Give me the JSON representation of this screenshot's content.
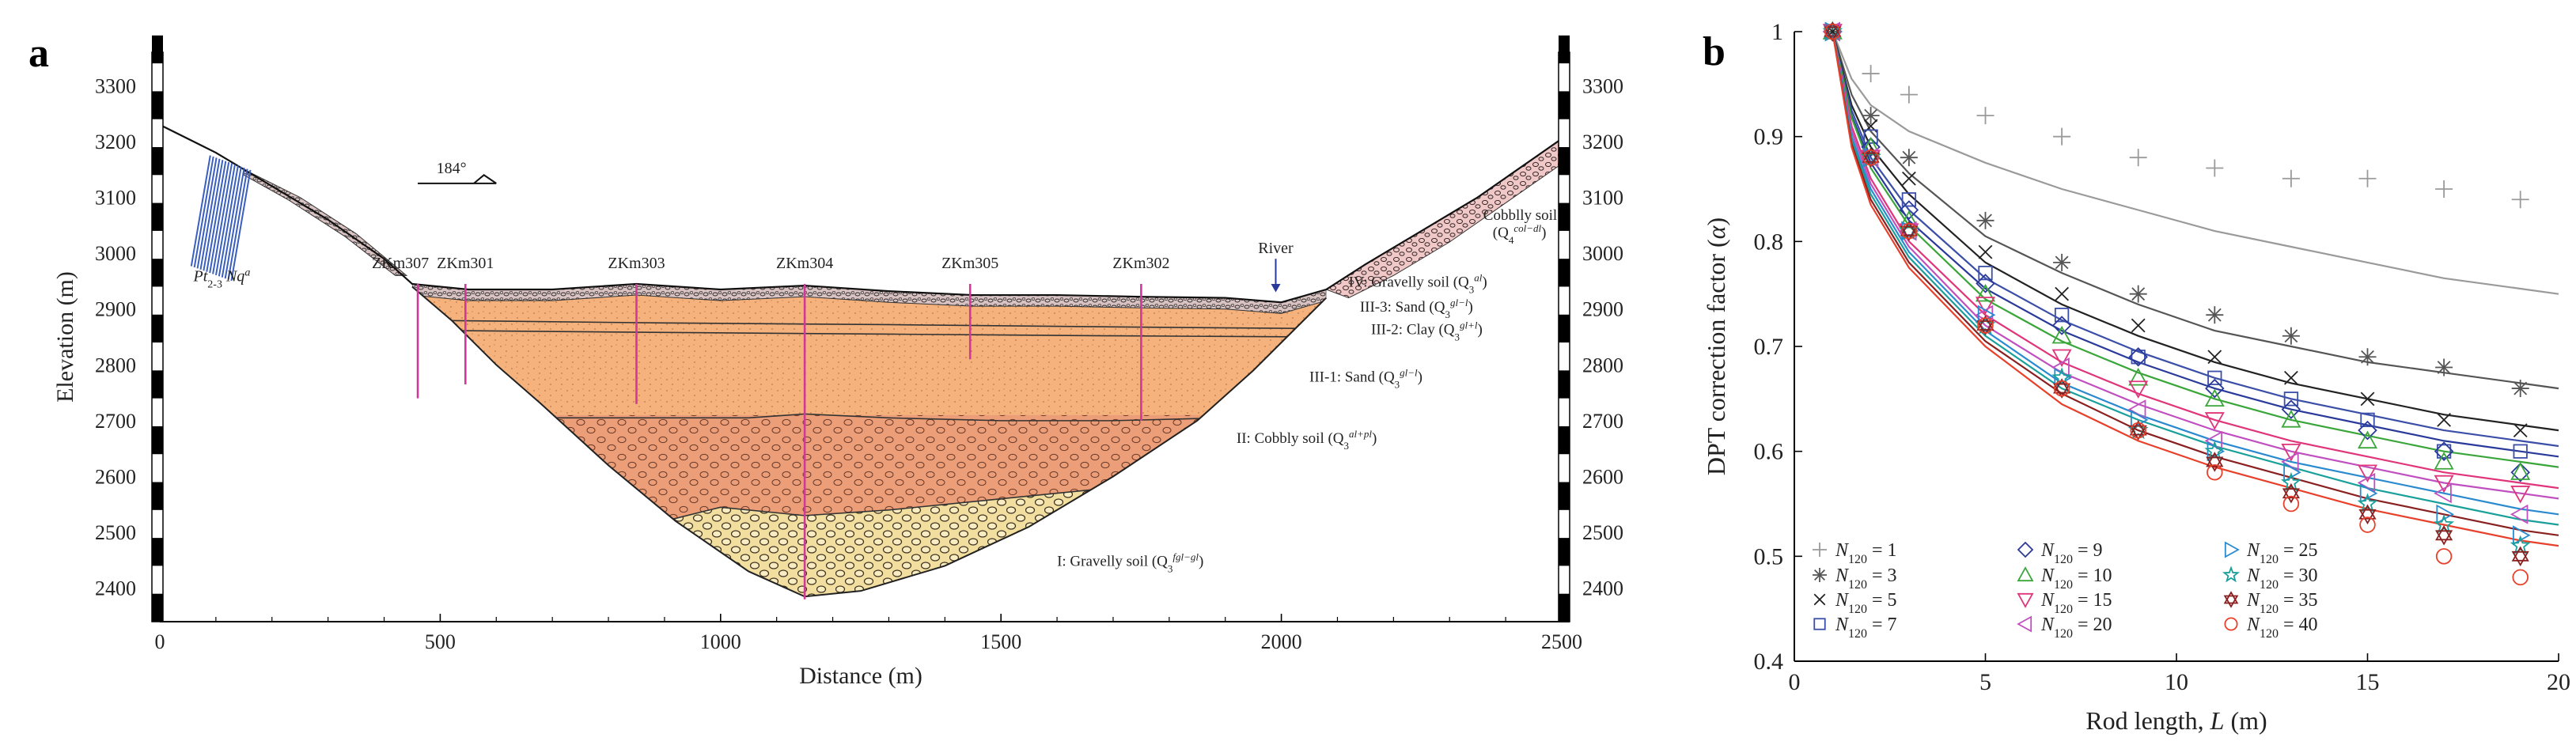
{
  "panel_a_label": "a",
  "panel_b_label": "b",
  "panel_a": {
    "xlabel": "Distance (m)",
    "ylabel": "Elevation (m)",
    "xticks": [
      0,
      500,
      1000,
      1500,
      2000,
      2500
    ],
    "yticks": [
      2400,
      2500,
      2600,
      2700,
      2800,
      2900,
      3000,
      3100,
      3200,
      3300
    ],
    "direction_label": "184°",
    "boreholes": [
      {
        "name": "ZKm307",
        "x": 460,
        "bottom": 2740
      },
      {
        "name": "ZKm301",
        "x": 545,
        "bottom": 2765
      },
      {
        "name": "ZKm303",
        "x": 850,
        "bottom": 2730
      },
      {
        "name": "ZKm304",
        "x": 1150,
        "bottom": 2380
      },
      {
        "name": "ZKm305",
        "x": 1445,
        "bottom": 2810
      },
      {
        "name": "ZKm302",
        "x": 1750,
        "bottom": 2700
      }
    ],
    "river_label": "River",
    "bedrock_label": "Pt",
    "bedrock_sub": "2-3",
    "bedrock_mid": " Nq",
    "bedrock_sup": "a",
    "layer_labels": [
      {
        "main": "Cobblly soil",
        "line2": "(Q",
        "sub": "4",
        "sup": "col−dl",
        "close": ")"
      },
      {
        "main": "IV: Gravelly soil (Q",
        "sub": "3",
        "sup": "al",
        "close": ")"
      },
      {
        "main": "III-3: Sand (Q",
        "sub": "3",
        "sup": "gl−l",
        "close": ")"
      },
      {
        "main": "III-2: Clay (Q",
        "sub": "3",
        "sup": "gl+l",
        "close": ")"
      },
      {
        "main": "III-1: Sand (Q",
        "sub": "3",
        "sup": "gl−l",
        "close": ")"
      },
      {
        "main": "II: Cobbly soil (Q",
        "sub": "3",
        "sup": "al+pl",
        "close": ")"
      },
      {
        "main": "I: Gravelly soil (Q",
        "sub": "3",
        "sup": "fgl−gl",
        "close": ")"
      }
    ],
    "colors": {
      "sand": "#f5b27c",
      "cobbly": "#e9a37d",
      "gravel": "#f2de9e",
      "borehole": "#d0389a",
      "bedrock": "#3a5fbf"
    }
  },
  "chart_data": {
    "type": "scatter",
    "xlabel_pre": "Rod length, ",
    "xlabel_var": "L",
    "xlabel_post": " (m)",
    "ylabel_pre": "DPT correction factor (",
    "ylabel_var": "α",
    "ylabel_post": ")",
    "xlim": [
      0,
      20
    ],
    "ylim": [
      0.4,
      1.0
    ],
    "xticks": [
      0,
      5,
      10,
      15,
      20
    ],
    "yticks": [
      0.4,
      0.5,
      0.6,
      0.7,
      0.8,
      0.9,
      1
    ],
    "legend_placement": "bottom-left",
    "x": [
      1,
      2,
      3,
      5,
      7,
      9,
      11,
      13,
      15,
      17,
      19
    ],
    "series": [
      {
        "name": "N120 = 1",
        "legend_n": "N",
        "legend_sub": "120",
        "legend_val": " = 1",
        "marker": "plus",
        "color": "#9a9a9a",
        "values": [
          1.0,
          0.96,
          0.94,
          0.92,
          0.9,
          0.88,
          0.87,
          0.86,
          0.86,
          0.85,
          0.84
        ],
        "curve": [
          [
            1,
            1.0
          ],
          [
            1.5,
            0.955
          ],
          [
            2,
            0.93
          ],
          [
            3,
            0.905
          ],
          [
            5,
            0.875
          ],
          [
            7,
            0.85
          ],
          [
            9,
            0.83
          ],
          [
            11,
            0.81
          ],
          [
            13,
            0.795
          ],
          [
            15,
            0.78
          ],
          [
            17,
            0.765
          ],
          [
            19,
            0.755
          ],
          [
            20,
            0.75
          ]
        ]
      },
      {
        "name": "N120 = 3",
        "legend_n": "N",
        "legend_sub": "120",
        "legend_val": " = 3",
        "marker": "asterisk",
        "color": "#555555",
        "values": [
          1.0,
          0.92,
          0.88,
          0.82,
          0.78,
          0.75,
          0.73,
          0.71,
          0.69,
          0.68,
          0.66
        ],
        "curve": [
          [
            1,
            1.0
          ],
          [
            1.5,
            0.94
          ],
          [
            2,
            0.905
          ],
          [
            3,
            0.865
          ],
          [
            5,
            0.805
          ],
          [
            7,
            0.77
          ],
          [
            9,
            0.74
          ],
          [
            11,
            0.715
          ],
          [
            13,
            0.7
          ],
          [
            15,
            0.685
          ],
          [
            17,
            0.675
          ],
          [
            19,
            0.665
          ],
          [
            20,
            0.66
          ]
        ]
      },
      {
        "name": "N120 = 5",
        "legend_n": "N",
        "legend_sub": "120",
        "legend_val": " = 5",
        "marker": "x",
        "color": "#222222",
        "values": [
          1.0,
          0.91,
          0.86,
          0.79,
          0.75,
          0.72,
          0.69,
          0.67,
          0.65,
          0.63,
          0.62
        ],
        "curve": [
          [
            1,
            1.0
          ],
          [
            1.5,
            0.93
          ],
          [
            2,
            0.89
          ],
          [
            3,
            0.845
          ],
          [
            5,
            0.78
          ],
          [
            7,
            0.74
          ],
          [
            9,
            0.71
          ],
          [
            11,
            0.685
          ],
          [
            13,
            0.665
          ],
          [
            15,
            0.65
          ],
          [
            17,
            0.635
          ],
          [
            19,
            0.625
          ],
          [
            20,
            0.62
          ]
        ]
      },
      {
        "name": "N120 = 7",
        "legend_n": "N",
        "legend_sub": "120",
        "legend_val": " = 7",
        "marker": "square",
        "color": "#3b4fa8",
        "values": [
          1.0,
          0.9,
          0.84,
          0.77,
          0.73,
          0.69,
          0.67,
          0.65,
          0.63,
          0.6,
          0.6
        ],
        "curve": [
          [
            1,
            1.0
          ],
          [
            1.5,
            0.925
          ],
          [
            2,
            0.88
          ],
          [
            3,
            0.83
          ],
          [
            5,
            0.765
          ],
          [
            7,
            0.725
          ],
          [
            9,
            0.695
          ],
          [
            11,
            0.67
          ],
          [
            13,
            0.65
          ],
          [
            15,
            0.635
          ],
          [
            17,
            0.62
          ],
          [
            19,
            0.61
          ],
          [
            20,
            0.605
          ]
        ]
      },
      {
        "name": "N120 = 9",
        "legend_n": "N",
        "legend_sub": "120",
        "legend_val": " = 9",
        "marker": "diamond",
        "color": "#2a3a9a",
        "values": [
          1.0,
          0.89,
          0.83,
          0.76,
          0.72,
          0.69,
          0.66,
          0.64,
          0.62,
          0.6,
          0.58
        ],
        "curve": [
          [
            1,
            1.0
          ],
          [
            1.5,
            0.92
          ],
          [
            2,
            0.875
          ],
          [
            3,
            0.82
          ],
          [
            5,
            0.755
          ],
          [
            7,
            0.715
          ],
          [
            9,
            0.685
          ],
          [
            11,
            0.66
          ],
          [
            13,
            0.64
          ],
          [
            15,
            0.625
          ],
          [
            17,
            0.61
          ],
          [
            19,
            0.6
          ],
          [
            20,
            0.595
          ]
        ]
      },
      {
        "name": "N120 = 10",
        "legend_n": "N",
        "legend_sub": "120",
        "legend_val": " = 10",
        "marker": "triangle-up",
        "color": "#3aa63a",
        "values": [
          1.0,
          0.89,
          0.82,
          0.75,
          0.71,
          0.67,
          0.65,
          0.63,
          0.61,
          0.59,
          0.58
        ],
        "curve": [
          [
            1,
            1.0
          ],
          [
            1.5,
            0.918
          ],
          [
            2,
            0.87
          ],
          [
            3,
            0.815
          ],
          [
            5,
            0.745
          ],
          [
            7,
            0.705
          ],
          [
            9,
            0.675
          ],
          [
            11,
            0.65
          ],
          [
            13,
            0.63
          ],
          [
            15,
            0.615
          ],
          [
            17,
            0.6
          ],
          [
            19,
            0.59
          ],
          [
            20,
            0.585
          ]
        ]
      },
      {
        "name": "N120 = 15",
        "legend_n": "N",
        "legend_sub": "120",
        "legend_val": " = 15",
        "marker": "triangle-down",
        "color": "#e0357a",
        "values": [
          1.0,
          0.88,
          0.81,
          0.74,
          0.69,
          0.66,
          0.63,
          0.6,
          0.58,
          0.57,
          0.56
        ],
        "curve": [
          [
            1,
            1.0
          ],
          [
            1.5,
            0.91
          ],
          [
            2,
            0.86
          ],
          [
            3,
            0.8
          ],
          [
            5,
            0.73
          ],
          [
            7,
            0.685
          ],
          [
            9,
            0.655
          ],
          [
            11,
            0.63
          ],
          [
            13,
            0.61
          ],
          [
            15,
            0.595
          ],
          [
            17,
            0.58
          ],
          [
            19,
            0.57
          ],
          [
            20,
            0.565
          ]
        ]
      },
      {
        "name": "N120 = 20",
        "legend_n": "N",
        "legend_sub": "120",
        "legend_val": " = 20",
        "marker": "triangle-left",
        "color": "#c050c0",
        "values": [
          1.0,
          0.88,
          0.81,
          0.73,
          0.68,
          0.64,
          0.61,
          0.59,
          0.57,
          0.56,
          0.54
        ],
        "curve": [
          [
            1,
            1.0
          ],
          [
            1.5,
            0.905
          ],
          [
            2,
            0.855
          ],
          [
            3,
            0.795
          ],
          [
            5,
            0.72
          ],
          [
            7,
            0.675
          ],
          [
            9,
            0.645
          ],
          [
            11,
            0.62
          ],
          [
            13,
            0.6
          ],
          [
            15,
            0.585
          ],
          [
            17,
            0.57
          ],
          [
            19,
            0.56
          ],
          [
            20,
            0.555
          ]
        ]
      },
      {
        "name": "N120 = 25",
        "legend_n": "N",
        "legend_sub": "120",
        "legend_val": " = 25",
        "marker": "triangle-right",
        "color": "#2a8ad0",
        "values": [
          1.0,
          0.88,
          0.81,
          0.73,
          0.67,
          0.63,
          0.6,
          0.58,
          0.56,
          0.54,
          0.52
        ],
        "curve": [
          [
            1,
            1.0
          ],
          [
            1.5,
            0.9
          ],
          [
            2,
            0.85
          ],
          [
            3,
            0.79
          ],
          [
            5,
            0.715
          ],
          [
            7,
            0.665
          ],
          [
            9,
            0.635
          ],
          [
            11,
            0.61
          ],
          [
            13,
            0.59
          ],
          [
            15,
            0.575
          ],
          [
            17,
            0.56
          ],
          [
            19,
            0.545
          ],
          [
            20,
            0.54
          ]
        ]
      },
      {
        "name": "N120 = 30",
        "legend_n": "N",
        "legend_sub": "120",
        "legend_val": " = 30",
        "marker": "star",
        "color": "#1aa09a",
        "values": [
          1.0,
          0.88,
          0.81,
          0.72,
          0.67,
          0.62,
          0.6,
          0.57,
          0.55,
          0.53,
          0.51
        ],
        "curve": [
          [
            1,
            1.0
          ],
          [
            1.5,
            0.897
          ],
          [
            2,
            0.845
          ],
          [
            3,
            0.785
          ],
          [
            5,
            0.71
          ],
          [
            7,
            0.66
          ],
          [
            9,
            0.63
          ],
          [
            11,
            0.605
          ],
          [
            13,
            0.585
          ],
          [
            15,
            0.565
          ],
          [
            17,
            0.55
          ],
          [
            19,
            0.535
          ],
          [
            20,
            0.53
          ]
        ]
      },
      {
        "name": "N120 = 35",
        "legend_n": "N",
        "legend_sub": "120",
        "legend_val": " = 35",
        "marker": "hexagram",
        "color": "#8a2020",
        "values": [
          1.0,
          0.88,
          0.81,
          0.72,
          0.66,
          0.62,
          0.59,
          0.56,
          0.54,
          0.52,
          0.5
        ],
        "curve": [
          [
            1,
            1.0
          ],
          [
            1.5,
            0.893
          ],
          [
            2,
            0.84
          ],
          [
            3,
            0.78
          ],
          [
            5,
            0.705
          ],
          [
            7,
            0.655
          ],
          [
            9,
            0.62
          ],
          [
            11,
            0.595
          ],
          [
            13,
            0.575
          ],
          [
            15,
            0.555
          ],
          [
            17,
            0.54
          ],
          [
            19,
            0.525
          ],
          [
            20,
            0.52
          ]
        ]
      },
      {
        "name": "N120 = 40",
        "legend_n": "N",
        "legend_sub": "120",
        "legend_val": " = 40",
        "marker": "circle",
        "color": "#e8402a",
        "values": [
          1.0,
          0.88,
          0.81,
          0.72,
          0.66,
          0.62,
          0.58,
          0.55,
          0.53,
          0.5,
          0.48
        ],
        "curve": [
          [
            1,
            1.0
          ],
          [
            1.5,
            0.89
          ],
          [
            2,
            0.835
          ],
          [
            3,
            0.775
          ],
          [
            5,
            0.7
          ],
          [
            7,
            0.645
          ],
          [
            9,
            0.61
          ],
          [
            11,
            0.585
          ],
          [
            13,
            0.565
          ],
          [
            15,
            0.545
          ],
          [
            17,
            0.53
          ],
          [
            19,
            0.515
          ],
          [
            20,
            0.51
          ]
        ]
      }
    ]
  }
}
